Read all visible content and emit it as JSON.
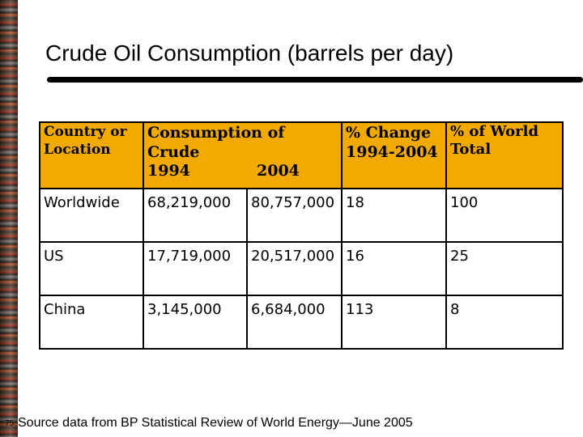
{
  "slide": {
    "title": "Crude Oil Consumption (barrels per day)",
    "footnote": "Source data from BP Statistical Review of World Energy—June 2005",
    "page_number": "75"
  },
  "table": {
    "headers": {
      "country": "Country or Location",
      "consumption_group": "Consumption of Crude",
      "year_1994": "1994",
      "year_2004": "2004",
      "pct_change": "% Change 1994-2004",
      "pct_world": "% of World Total"
    },
    "rows": [
      {
        "location": "Worldwide",
        "c1994": "68,219,000",
        "c2004": "80,757,000",
        "change": "18",
        "share": "100"
      },
      {
        "location": "US",
        "c1994": "17,719,000",
        "c2004": "20,517,000",
        "change": "16",
        "share": "25"
      },
      {
        "location": "China",
        "c1994": "3,145,000",
        "c2004": "6,684,000",
        "change": "113",
        "share": "8"
      }
    ]
  },
  "colors": {
    "header_fill": "#f2a900",
    "rule": "#000000"
  }
}
